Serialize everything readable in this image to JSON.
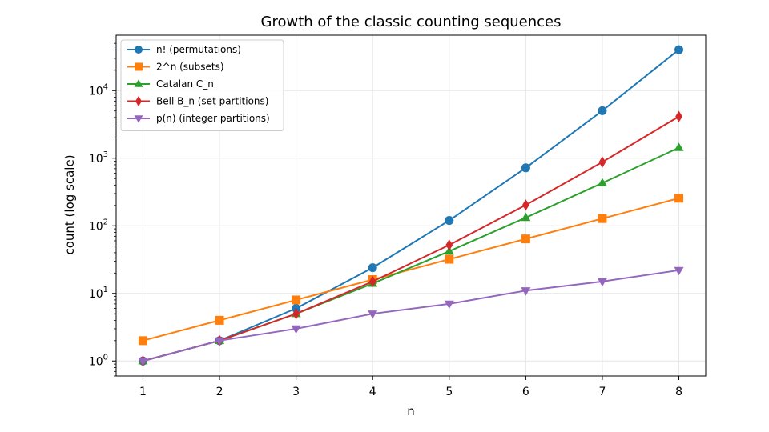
{
  "chart_data": {
    "type": "line",
    "title": "Growth of the classic counting sequences",
    "xlabel": "n",
    "ylabel": "count (log scale)",
    "yscale": "log",
    "x": [
      1,
      2,
      3,
      4,
      5,
      6,
      7,
      8
    ],
    "xlim": [
      0.65,
      8.35
    ],
    "ylim": [
      0.6,
      66000
    ],
    "x_ticks": [
      1,
      2,
      3,
      4,
      5,
      6,
      7,
      8
    ],
    "y_ticks": [
      {
        "value": 1,
        "base": "10",
        "exp": "0"
      },
      {
        "value": 10,
        "base": "10",
        "exp": "1"
      },
      {
        "value": 100,
        "base": "10",
        "exp": "2"
      },
      {
        "value": 1000,
        "base": "10",
        "exp": "3"
      },
      {
        "value": 10000,
        "base": "10",
        "exp": "4"
      }
    ],
    "grid": true,
    "legend_position": "upper-left",
    "series": [
      {
        "name": "n! (permutations)",
        "color": "#1f77b4",
        "marker": "circle",
        "values": [
          1,
          2,
          6,
          24,
          120,
          720,
          5040,
          40320
        ]
      },
      {
        "name": "2^n (subsets)",
        "color": "#ff7f0e",
        "marker": "square",
        "values": [
          2,
          4,
          8,
          16,
          32,
          64,
          128,
          256
        ]
      },
      {
        "name": "Catalan C_n",
        "color": "#2ca02c",
        "marker": "triangle-up",
        "values": [
          1,
          2,
          5,
          14,
          42,
          132,
          429,
          1430
        ]
      },
      {
        "name": "Bell B_n (set partitions)",
        "color": "#d62728",
        "marker": "diamond",
        "values": [
          1,
          2,
          5,
          15,
          52,
          203,
          877,
          4140
        ]
      },
      {
        "name": "p(n) (integer partitions)",
        "color": "#9467bd",
        "marker": "triangle-down",
        "values": [
          1,
          2,
          3,
          5,
          7,
          11,
          15,
          22
        ]
      }
    ]
  }
}
